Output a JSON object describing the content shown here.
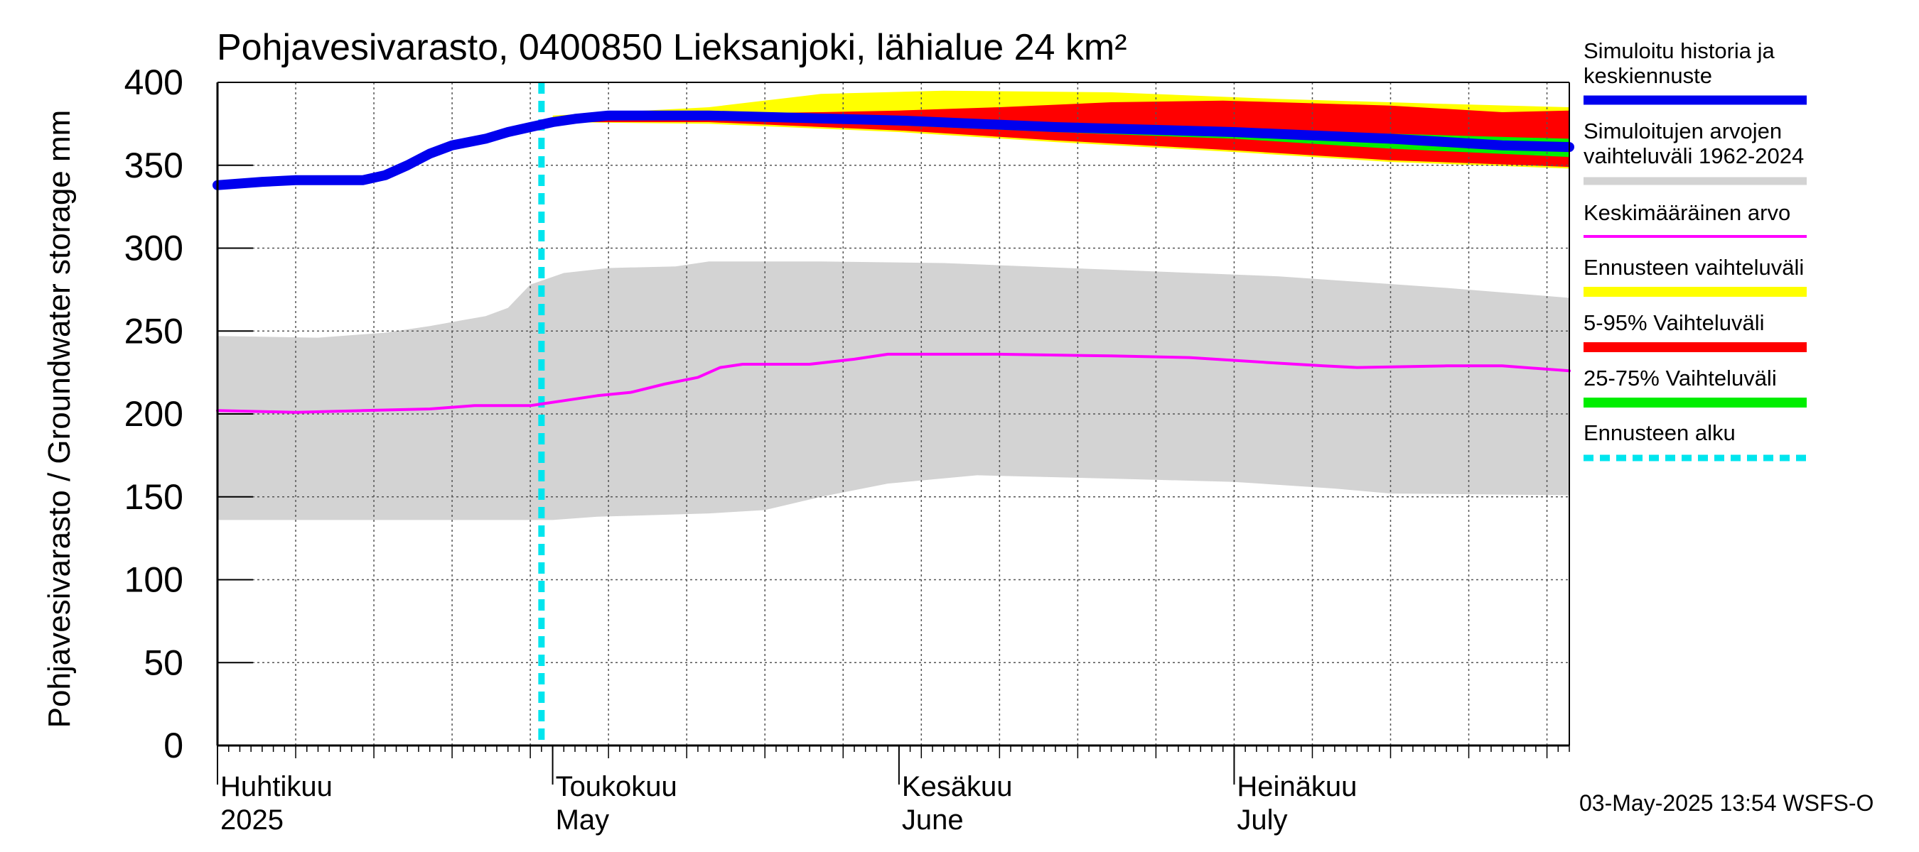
{
  "chart_data": {
    "type": "area",
    "title": "Pohjavesivarasto, 0400850 Lieksanjoki, lähialue 24 km²",
    "ylabel": "Pohjavesivarasto / Groundwater storage   mm",
    "ylim": [
      0,
      400
    ],
    "yticks": [
      "0",
      "50",
      "100",
      "150",
      "200",
      "250",
      "300",
      "350",
      "400"
    ],
    "xlim": [
      "2025-04-01",
      "2025-07-31"
    ],
    "months": [
      {
        "date": "2025-04-01",
        "label1": "Huhtikuu",
        "label2": "2025"
      },
      {
        "date": "2025-05-01",
        "label1": "Toukokuu",
        "label2": "May"
      },
      {
        "date": "2025-06-01",
        "label1": "Kesäkuu",
        "label2": "June"
      },
      {
        "date": "2025-07-01",
        "label1": "Heinäkuu",
        "label2": "July"
      }
    ],
    "forecast_start": "2025-04-30",
    "timestamp": "03-May-2025 13:54 WSFS-O",
    "legend": [
      {
        "label": "Simuloitu historia ja keskiennuste",
        "color": "#0000ee"
      },
      {
        "label": "Simuloitujen arvojen vaihteluväli 1962-2024",
        "color": "#d3d3d3"
      },
      {
        "label": "Keskimääräinen arvo",
        "color": "#ff00ff"
      },
      {
        "label": "Ennusteen vaihteluväli",
        "color": "#ffff00"
      },
      {
        "label": "5-95% Vaihteluväli",
        "color": "#ff0000"
      },
      {
        "label": "25-75% Vaihteluväli",
        "color": "#00ee00"
      },
      {
        "label": "Ennusteen alku",
        "color": "#00e5ee"
      }
    ],
    "series": [
      {
        "name": "Simuloitu historia ja keskiennuste",
        "points": [
          [
            "2025-04-01",
            338
          ],
          [
            "2025-04-05",
            340
          ],
          [
            "2025-04-08",
            341
          ],
          [
            "2025-04-12",
            341
          ],
          [
            "2025-04-14",
            341
          ],
          [
            "2025-04-16",
            344
          ],
          [
            "2025-04-18",
            350
          ],
          [
            "2025-04-20",
            357
          ],
          [
            "2025-04-22",
            362
          ],
          [
            "2025-04-25",
            366
          ],
          [
            "2025-04-27",
            370
          ],
          [
            "2025-04-29",
            373
          ],
          [
            "2025-05-01",
            376
          ],
          [
            "2025-05-03",
            378
          ],
          [
            "2025-05-06",
            380
          ],
          [
            "2025-05-15",
            380
          ],
          [
            "2025-06-01",
            377
          ],
          [
            "2025-06-15",
            373
          ],
          [
            "2025-07-01",
            370
          ],
          [
            "2025-07-15",
            366
          ],
          [
            "2025-07-25",
            362
          ],
          [
            "2025-07-31",
            361
          ]
        ]
      },
      {
        "name": "Keskimääräinen arvo",
        "points": [
          [
            "2025-04-01",
            202
          ],
          [
            "2025-04-08",
            201
          ],
          [
            "2025-04-14",
            202
          ],
          [
            "2025-04-20",
            203
          ],
          [
            "2025-04-24",
            205
          ],
          [
            "2025-04-29",
            205
          ],
          [
            "2025-05-02",
            208
          ],
          [
            "2025-05-05",
            211
          ],
          [
            "2025-05-08",
            213
          ],
          [
            "2025-05-11",
            218
          ],
          [
            "2025-05-14",
            222
          ],
          [
            "2025-05-16",
            228
          ],
          [
            "2025-05-18",
            230
          ],
          [
            "2025-05-24",
            230
          ],
          [
            "2025-05-28",
            233
          ],
          [
            "2025-05-31",
            236
          ],
          [
            "2025-06-03",
            236
          ],
          [
            "2025-06-10",
            236
          ],
          [
            "2025-06-20",
            235
          ],
          [
            "2025-06-27",
            234
          ],
          [
            "2025-07-04",
            231
          ],
          [
            "2025-07-09",
            229
          ],
          [
            "2025-07-12",
            228
          ],
          [
            "2025-07-20",
            229
          ],
          [
            "2025-07-25",
            229
          ],
          [
            "2025-07-31",
            226
          ]
        ]
      }
    ],
    "bands": [
      {
        "name": "Simuloitujen arvojen vaihteluväli 1962-2024",
        "upper": [
          [
            "2025-04-01",
            247
          ],
          [
            "2025-04-10",
            246
          ],
          [
            "2025-04-16",
            249
          ],
          [
            "2025-04-20",
            253
          ],
          [
            "2025-04-25",
            259
          ],
          [
            "2025-04-27",
            264
          ],
          [
            "2025-04-29",
            278
          ],
          [
            "2025-05-02",
            285
          ],
          [
            "2025-05-06",
            288
          ],
          [
            "2025-05-12",
            289
          ],
          [
            "2025-05-15",
            292
          ],
          [
            "2025-05-25",
            292
          ],
          [
            "2025-06-05",
            291
          ],
          [
            "2025-06-20",
            287
          ],
          [
            "2025-07-05",
            283
          ],
          [
            "2025-07-20",
            276
          ],
          [
            "2025-07-31",
            270
          ]
        ],
        "lower": [
          [
            "2025-04-01",
            136
          ],
          [
            "2025-04-20",
            136
          ],
          [
            "2025-05-01",
            136
          ],
          [
            "2025-05-05",
            138
          ],
          [
            "2025-05-15",
            140
          ],
          [
            "2025-05-20",
            142
          ],
          [
            "2025-05-25",
            150
          ],
          [
            "2025-05-31",
            158
          ],
          [
            "2025-06-08",
            163
          ],
          [
            "2025-06-20",
            161
          ],
          [
            "2025-07-01",
            159
          ],
          [
            "2025-07-10",
            155
          ],
          [
            "2025-07-15",
            152
          ],
          [
            "2025-07-31",
            151
          ]
        ]
      },
      {
        "name": "Ennusteen vaihteluväli",
        "upper": [
          [
            "2025-05-01",
            380
          ],
          [
            "2025-05-15",
            385
          ],
          [
            "2025-05-25",
            393
          ],
          [
            "2025-06-05",
            395
          ],
          [
            "2025-06-20",
            394
          ],
          [
            "2025-07-05",
            390
          ],
          [
            "2025-07-20",
            387
          ],
          [
            "2025-07-31",
            385
          ]
        ],
        "lower": [
          [
            "2025-05-01",
            376
          ],
          [
            "2025-05-15",
            375
          ],
          [
            "2025-06-01",
            370
          ],
          [
            "2025-06-15",
            364
          ],
          [
            "2025-07-01",
            358
          ],
          [
            "2025-07-15",
            352
          ],
          [
            "2025-07-31",
            348
          ]
        ]
      },
      {
        "name": "5-95% Vaihteluväli",
        "upper": [
          [
            "2025-05-01",
            378
          ],
          [
            "2025-05-15",
            381
          ],
          [
            "2025-05-25",
            382
          ],
          [
            "2025-06-01",
            383
          ],
          [
            "2025-06-10",
            385
          ],
          [
            "2025-06-20",
            388
          ],
          [
            "2025-06-30",
            389
          ],
          [
            "2025-07-05",
            388
          ],
          [
            "2025-07-15",
            386
          ],
          [
            "2025-07-25",
            382
          ],
          [
            "2025-07-31",
            383
          ]
        ],
        "lower": [
          [
            "2025-05-01",
            376
          ],
          [
            "2025-05-15",
            376
          ],
          [
            "2025-06-01",
            371
          ],
          [
            "2025-06-15",
            365
          ],
          [
            "2025-07-01",
            359
          ],
          [
            "2025-07-15",
            353
          ],
          [
            "2025-07-31",
            349
          ]
        ]
      },
      {
        "name": "25-75% Vaihteluväli",
        "upper": [
          [
            "2025-05-08",
            380
          ],
          [
            "2025-05-20",
            379
          ],
          [
            "2025-06-01",
            378
          ],
          [
            "2025-06-15",
            375
          ],
          [
            "2025-07-01",
            372
          ],
          [
            "2025-07-15",
            369
          ],
          [
            "2025-07-31",
            366
          ]
        ],
        "lower": [
          [
            "2025-05-08",
            379
          ],
          [
            "2025-05-20",
            377
          ],
          [
            "2025-06-01",
            374
          ],
          [
            "2025-06-15",
            370
          ],
          [
            "2025-07-01",
            366
          ],
          [
            "2025-07-15",
            360
          ],
          [
            "2025-07-31",
            355
          ]
        ]
      }
    ]
  }
}
